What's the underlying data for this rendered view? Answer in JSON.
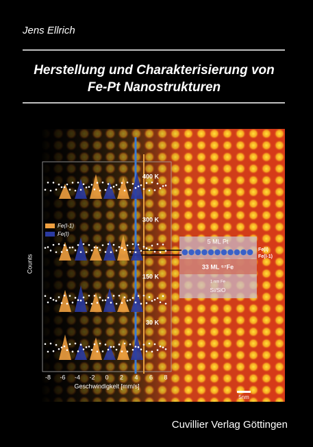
{
  "author": "Jens Ellrich",
  "title": [
    "Herstellung und Charakterisierung von",
    "Fe-Pt Nanostrukturen"
  ],
  "publisher": "Cuvillier Verlag Göttingen",
  "figure": {
    "temperatures": [
      "400 K",
      "300 K",
      "150 K",
      "30 K"
    ],
    "legend": [
      "Fe(I-1)",
      "Fe(I)"
    ],
    "y_label": "Counts",
    "x_label": "Geschwindigkeit [mm/s]",
    "x_ticks": [
      "-8",
      "-6",
      "-4",
      "-2",
      "0",
      "2",
      "4",
      "6",
      "8"
    ],
    "scale_bar": "5nm",
    "layers": [
      "5 ML Pt",
      "33 ML ⁵⁷Fe",
      "1 nm Fe",
      "Si/SiO"
    ],
    "layer_markers": [
      "Fe(I)",
      "Fe(I-1)"
    ]
  }
}
